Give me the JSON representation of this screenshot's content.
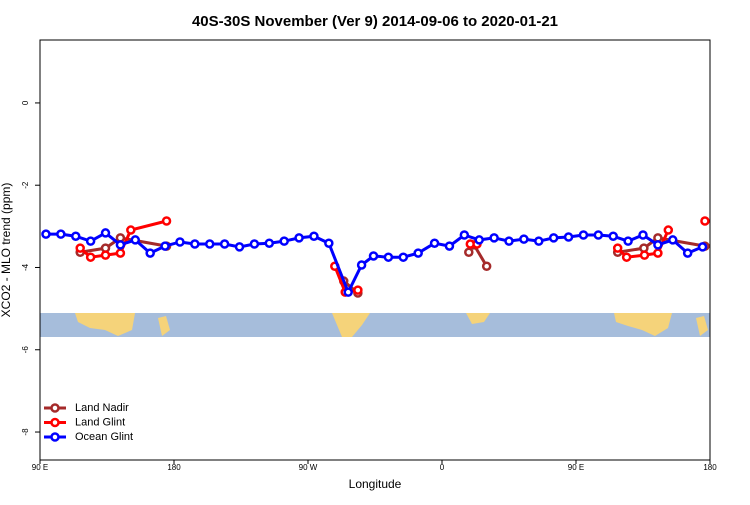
{
  "chart_data": {
    "type": "line",
    "title": "40S-30S November (Ver 9)   2014-09-06 to 2020-01-21",
    "x_label": "Longitude",
    "y_label": "XCO2 - MLO trend (ppm)",
    "xlim": [
      90,
      540
    ],
    "xticks": [
      {
        "value": 90,
        "label": "90 E"
      },
      {
        "value": 180,
        "label": "180"
      },
      {
        "value": 270,
        "label": "90 W"
      },
      {
        "value": 360,
        "label": "0"
      },
      {
        "value": 450,
        "label": "90 E"
      },
      {
        "value": 540,
        "label": "180"
      }
    ],
    "ylim": [
      -8.68,
      1.53
    ],
    "yticks": [
      0,
      -2,
      -4,
      -6,
      -8
    ],
    "legend": "bottom-left",
    "series": [
      {
        "name": "Land Nadir",
        "color": "#a52a2a",
        "x": [
          117,
          134,
          144,
          175,
          null,
          294,
          303.5,
          null,
          378,
          381.5,
          390,
          null,
          478,
          495.6,
          505,
          536.6
        ],
        "values": [
          -3.63,
          -3.53,
          -3.28,
          -3.48,
          null,
          -4.33,
          -4.62,
          null,
          -3.63,
          -3.45,
          -3.97,
          null,
          -3.63,
          -3.53,
          -3.28,
          -3.48
        ]
      },
      {
        "name": "Land Glint",
        "color": "#ff0000",
        "x": [
          117,
          124,
          134,
          144,
          151,
          175,
          null,
          288,
          295,
          303.5,
          null,
          379,
          383.5,
          null,
          478,
          484,
          496,
          505,
          512,
          null,
          536.6
        ],
        "values": [
          -3.53,
          -3.75,
          -3.7,
          -3.65,
          -3.09,
          -2.87,
          null,
          -3.97,
          -4.6,
          -4.55,
          null,
          -3.43,
          -3.43,
          null,
          -3.53,
          -3.75,
          -3.7,
          -3.65,
          -3.09,
          null,
          -2.87
        ]
      },
      {
        "name": "Ocean Glint",
        "color": "#0000ff",
        "x": [
          94,
          104,
          114,
          124,
          134,
          144,
          154,
          164,
          174,
          184,
          194,
          204,
          214,
          224,
          234,
          244,
          254,
          264,
          274,
          284,
          297,
          306,
          314,
          324,
          334,
          344,
          355,
          365,
          375,
          385,
          395,
          405,
          415,
          425,
          435,
          445,
          455,
          465,
          475,
          485,
          495,
          505,
          515,
          525,
          535
        ],
        "values": [
          -3.19,
          -3.19,
          -3.24,
          -3.36,
          -3.16,
          -3.45,
          -3.33,
          -3.65,
          -3.48,
          -3.38,
          -3.43,
          -3.43,
          -3.43,
          -3.5,
          -3.43,
          -3.41,
          -3.36,
          -3.28,
          -3.24,
          -3.41,
          -4.6,
          -3.94,
          -3.72,
          -3.75,
          -3.75,
          -3.65,
          -3.41,
          -3.48,
          -3.21,
          -3.33,
          -3.28,
          -3.36,
          -3.31,
          -3.36,
          -3.28,
          -3.26,
          -3.21,
          -3.21,
          -3.24,
          -3.36,
          -3.21,
          -3.45,
          -3.33,
          -3.65,
          -3.5
        ]
      }
    ]
  }
}
